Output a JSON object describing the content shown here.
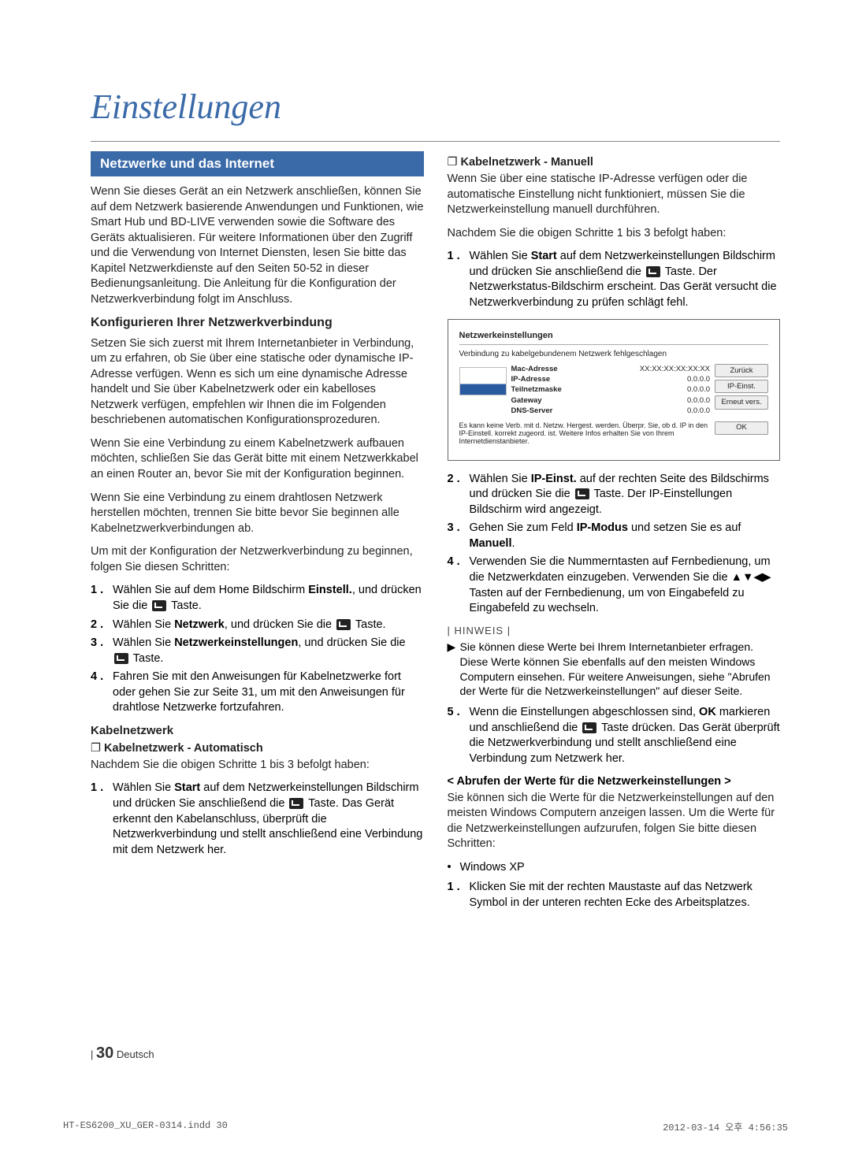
{
  "page_title": "Einstellungen",
  "colors": {
    "accent": "#3a6aa8",
    "text": "#222222",
    "background": "#ffffff"
  },
  "left": {
    "section_bar": "Netzwerke und das Internet",
    "intro": "Wenn Sie dieses Gerät an ein Netzwerk anschließen, können Sie auf dem Netzwerk basierende Anwendungen und Funktionen, wie Smart Hub und BD-LIVE verwenden sowie die Software des Geräts aktualisieren. Für weitere Informationen über den Zugriff und die Verwendung von Internet Diensten, lesen Sie bitte das Kapitel Netzwerkdienste auf den Seiten 50-52 in dieser Bedienungsanleitung. Die Anleitung für die Konfiguration der Netzwerkverbindung folgt im Anschluss.",
    "configure_heading": "Konfigurieren Ihrer Netzwerkverbindung",
    "configure_p1": "Setzen Sie sich zuerst mit Ihrem Internetanbieter in Verbindung, um zu erfahren, ob Sie über eine statische oder dynamische IP-Adresse verfügen. Wenn es sich um eine dynamische Adresse handelt und Sie über Kabelnetzwerk oder ein kabelloses Netzwerk verfügen, empfehlen wir Ihnen die im Folgenden beschriebenen automatischen Konfigurationsprozeduren.",
    "configure_p2": "Wenn Sie eine Verbindung zu einem Kabelnetzwerk aufbauen möchten, schließen Sie das Gerät bitte mit einem Netzwerkkabel an einen Router an, bevor Sie mit der Konfiguration beginnen.",
    "configure_p3": "Wenn Sie eine Verbindung zu einem drahtlosen Netzwerk herstellen möchten, trennen Sie bitte bevor Sie beginnen alle Kabelnetzwerkverbindungen ab.",
    "configure_p4": "Um mit der Konfiguration der Netzwerkverbindung zu beginnen, folgen Sie diesen Schritten:",
    "steps1": [
      "Wählen Sie auf dem Home Bildschirm <b>Einstell.</b>, und drücken Sie die {E} Taste.",
      "Wählen Sie <b>Netzwerk</b>, und drücken Sie die {E} Taste.",
      "Wählen Sie <b>Netzwerkeinstellungen</b>, und drücken Sie die {E} Taste.",
      "Fahren Sie mit den Anweisungen für Kabelnetzwerke fort oder gehen Sie zur Seite 31, um mit den Anweisungen für drahtlose Netzwerke fortzufahren."
    ],
    "wired_heading": "Kabelnetzwerk",
    "wired_auto_sub": "Kabelnetzwerk - Automatisch",
    "wired_auto_lead": "Nachdem Sie die obigen Schritte 1 bis 3 befolgt haben:",
    "wired_auto_step1": "Wählen Sie <b>Start</b> auf dem Netzwerkeinstellungen Bildschirm und drücken Sie anschließend die {E} Taste. Das Gerät erkennt den Kabelanschluss, überprüft die Netzwerkverbindung und stellt anschließend eine Verbindung mit dem Netzwerk her."
  },
  "right": {
    "wired_manual_sub": "Kabelnetzwerk - Manuell",
    "wired_manual_p1": "Wenn Sie über eine statische IP-Adresse verfügen oder die automatische Einstellung nicht funktioniert, müssen Sie die Netzwerkeinstellung manuell durchführen.",
    "wired_manual_p2": "Nachdem Sie die obigen Schritte 1 bis 3 befolgt haben:",
    "manual_step1": "Wählen Sie <b>Start</b> auf dem Netzwerkeinstellungen Bildschirm und drücken Sie anschließend die {E} Taste. Der Netzwerkstatus-Bildschirm erscheint. Das Gerät versucht die Netzwerkverbindung zu prüfen schlägt fehl.",
    "ui": {
      "title": "Netzwerkeinstellungen",
      "subtitle": "Verbindung zu kabelgebundenem Netzwerk fehlgeschlagen",
      "rows": [
        {
          "k": "Mac-Adresse",
          "v": "XX:XX:XX:XX:XX:XX"
        },
        {
          "k": "IP-Adresse",
          "v": "0.0.0.0"
        },
        {
          "k": "Teilnetzmaske",
          "v": "0.0.0.0"
        },
        {
          "k": "Gateway",
          "v": "0.0.0.0"
        },
        {
          "k": "DNS-Server",
          "v": "0.0.0.0"
        }
      ],
      "btn_back": "Zurück",
      "btn_ip": "IP-Einst.",
      "btn_retry": "Erneut vers.",
      "foot_msg": "Es kann keine Verb. mit d. Netzw. Hergest. werden. Überpr. Sie, ob d. IP in den IP-Einstell. korrekt zugeord. ist. Weitere Infos erhalten Sie von Ihrem Internetdienstanbieter.",
      "btn_ok": "OK"
    },
    "manual_steps_rest": [
      "Wählen Sie <b>IP-Einst.</b> auf der rechten Seite des Bildschirms und drücken Sie die {E} Taste. Der IP-Einstellungen Bildschirm wird angezeigt.",
      "Gehen Sie zum Feld <b>IP-Modus</b> und setzen Sie es auf <b>Manuell</b>.",
      "Verwenden Sie die Nummerntasten auf Fernbedienung, um die Netzwerkdaten einzugeben. Verwenden Sie die ▲▼◀▶ Tasten auf der Fernbedienung, um von Eingabefeld zu Eingabefeld zu wechseln."
    ],
    "hinweis_label": "| HINWEIS |",
    "note1": "Sie können diese Werte bei Ihrem Internetanbieter erfragen. Diese Werte können Sie ebenfalls auf den meisten Windows Computern einsehen. Für weitere Anweisungen, siehe \"Abrufen der Werte für die Netzwerkeinstellungen\" auf dieser Seite.",
    "manual_step5": "Wenn die Einstellungen abgeschlossen sind, <b>OK</b> markieren und anschließend die {E} Taste drücken. Das Gerät überprüft die Netzwerkverbindung und stellt anschließend eine Verbindung zum Netzwerk her.",
    "retrieve_heading": "< Abrufen der Werte für die Netzwerkeinstellungen >",
    "retrieve_p": "Sie können sich die Werte für die Netzwerkeinstellungen auf den meisten Windows Computern anzeigen lassen. Um die Werte für die Netzwerkeinstellungen aufzurufen, folgen Sie bitte diesen Schritten:",
    "bullet_xp": "Windows XP",
    "xp_step1": "Klicken Sie mit der rechten Maustaste auf das Netzwerk Symbol in der unteren rechten Ecke des Arbeitsplatzes."
  },
  "footer": {
    "page_number": "30",
    "lang": "Deutsch"
  },
  "print_meta": {
    "file": "HT-ES6200_XU_GER-0314.indd   30",
    "timestamp": "2012-03-14   오후 4:56:35"
  }
}
